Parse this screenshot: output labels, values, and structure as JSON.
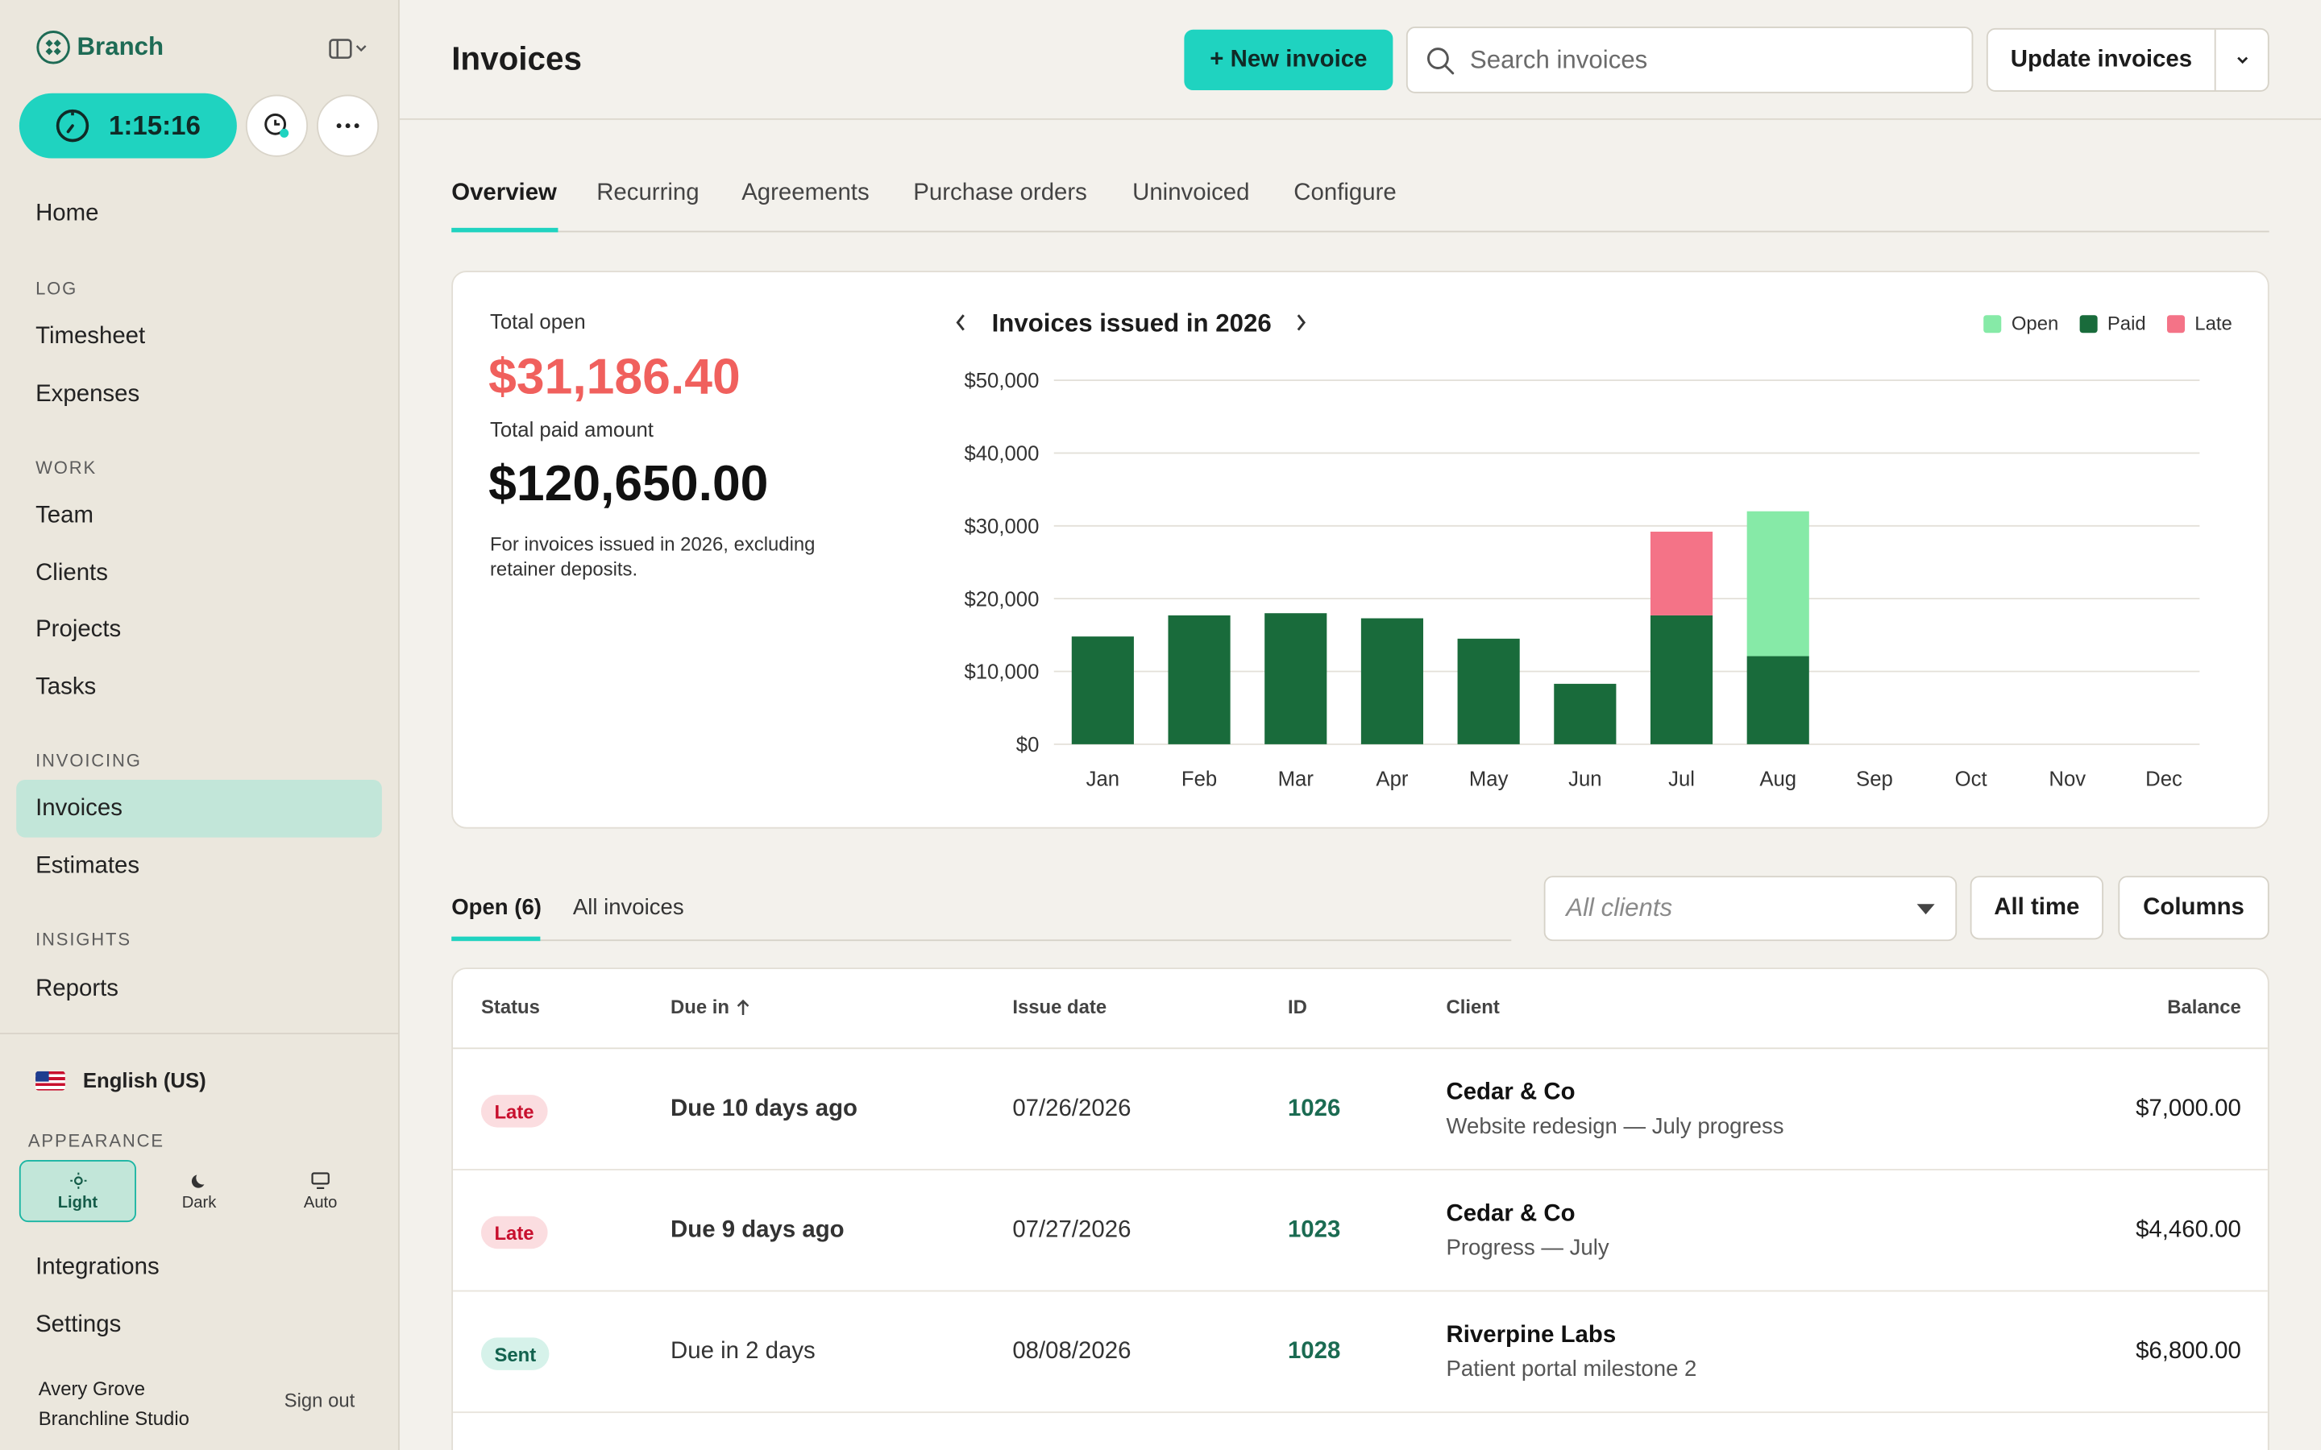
{
  "sidebar": {
    "brand": "Branch",
    "timer": "1:15:16",
    "nav": {
      "home": "Home",
      "log_section": "LOG",
      "timesheet": "Timesheet",
      "expenses": "Expenses",
      "work_section": "WORK",
      "team": "Team",
      "clients": "Clients",
      "projects": "Projects",
      "tasks": "Tasks",
      "invoicing_section": "INVOICING",
      "invoices": "Invoices",
      "estimates": "Estimates",
      "insights_section": "INSIGHTS",
      "reports": "Reports"
    },
    "language": "English (US)",
    "appearance": {
      "label": "APPEARANCE",
      "light": "Light",
      "dark": "Dark",
      "auto": "Auto",
      "selected": "Light"
    },
    "integrations": "Integrations",
    "settings": "Settings",
    "user": {
      "name": "Avery Grove",
      "company": "Branchline Studio"
    },
    "sign_out": "Sign out"
  },
  "header": {
    "title": "Invoices",
    "new_invoice": "+ New invoice",
    "search_placeholder": "Search invoices",
    "update_invoices": "Update invoices"
  },
  "tabs": [
    "Overview",
    "Recurring",
    "Agreements",
    "Purchase orders",
    "Uninvoiced",
    "Configure"
  ],
  "summary": {
    "total_open_label": "Total open",
    "total_open_value": "$31,186.40",
    "total_paid_label": "Total paid amount",
    "total_paid_value": "$120,650.00",
    "note": "For invoices issued in 2026, excluding retainer deposits."
  },
  "chart_data": {
    "type": "bar",
    "title": "Invoices issued in 2026",
    "categories": [
      "Jan",
      "Feb",
      "Mar",
      "Apr",
      "May",
      "Jun",
      "Jul",
      "Aug",
      "Sep",
      "Oct",
      "Nov",
      "Dec"
    ],
    "series": [
      {
        "name": "Open",
        "color": "#86eaa7",
        "values": [
          0,
          0,
          0,
          0,
          0,
          0,
          0,
          19900,
          0,
          0,
          0,
          0
        ]
      },
      {
        "name": "Paid",
        "color": "#196b3b",
        "values": [
          14800,
          17700,
          18000,
          17300,
          14500,
          8300,
          17700,
          12100,
          0,
          0,
          0,
          0
        ]
      },
      {
        "name": "Late",
        "color": "#f47387",
        "values": [
          0,
          0,
          0,
          0,
          0,
          0,
          11500,
          0,
          0,
          0,
          0,
          0
        ]
      }
    ],
    "stacked": true,
    "ylim": [
      0,
      50000
    ],
    "yticks": [
      "$0",
      "$10,000",
      "$20,000",
      "$30,000",
      "$40,000",
      "$50,000"
    ],
    "legend": "top-right",
    "grid": true
  },
  "filters": {
    "open_tab": "Open (6)",
    "all_tab": "All invoices",
    "clients_placeholder": "All clients",
    "time": "All time",
    "columns": "Columns"
  },
  "table": {
    "headers": {
      "status": "Status",
      "due": "Due in",
      "issue": "Issue date",
      "id": "ID",
      "client": "Client",
      "balance": "Balance"
    },
    "rows": [
      {
        "status": "Late",
        "due": "Due 10 days ago",
        "issue": "07/26/2026",
        "id": "1026",
        "client": "Cedar & Co",
        "desc": "Website redesign — July progress",
        "balance": "$7,000.00"
      },
      {
        "status": "Late",
        "due": "Due 9 days ago",
        "issue": "07/27/2026",
        "id": "1023",
        "client": "Cedar & Co",
        "desc": "Progress — July",
        "balance": "$4,460.00"
      },
      {
        "status": "Sent",
        "due": "Due in 2 days",
        "issue": "08/08/2026",
        "id": "1028",
        "client": "Riverpine Labs",
        "desc": "Patient portal milestone 2",
        "balance": "$6,800.00"
      }
    ]
  }
}
